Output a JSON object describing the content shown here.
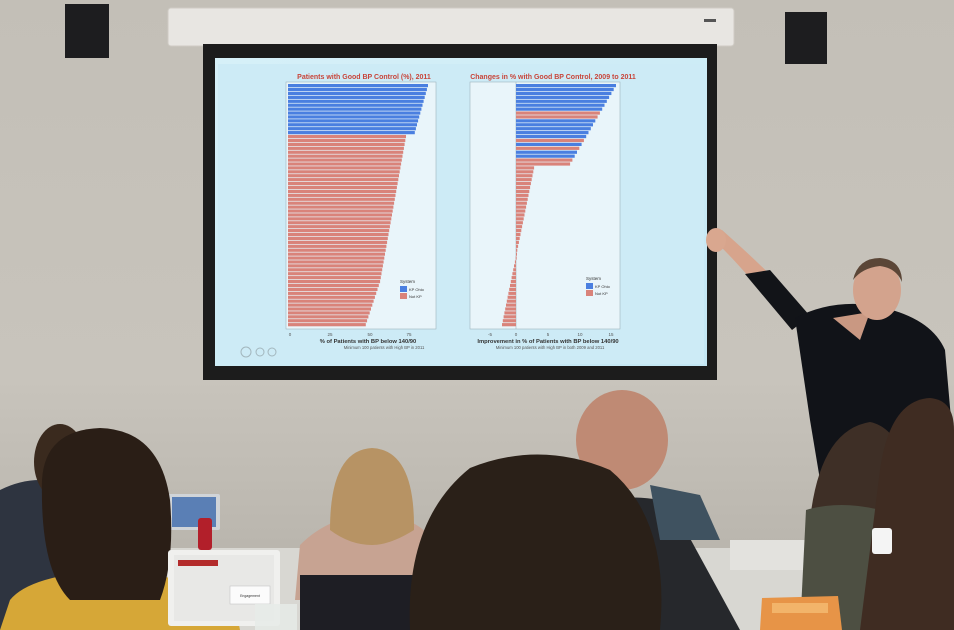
{
  "screen": {
    "left_chart": {
      "title": "Patients with Good BP Control (%), 2011",
      "xlabel": "% of Patients with BP below 140/90",
      "note": "Minimum 100 patients with High BP in 2011",
      "ticks": [
        "0",
        "25",
        "50",
        "75"
      ],
      "legend_title": "System",
      "legend_items": [
        "KP Ohio",
        "Not KP"
      ],
      "colors": {
        "kp": "#4a7fe0",
        "notkp": "#d9837a"
      }
    },
    "right_chart": {
      "title": "Changes in % with Good BP Control, 2009 to 2011",
      "xlabel": "Improvement in % of Patients with BP below 140/90",
      "note": "Minimum 100 patients with High BP in both 2009 and 2011",
      "ticks": [
        "-5",
        "0",
        "5",
        "10",
        "15"
      ],
      "legend_title": "System",
      "legend_items": [
        "KP Ohio",
        "Not KP"
      ]
    }
  },
  "laptop": {
    "sticker_text": "Engagement"
  }
}
